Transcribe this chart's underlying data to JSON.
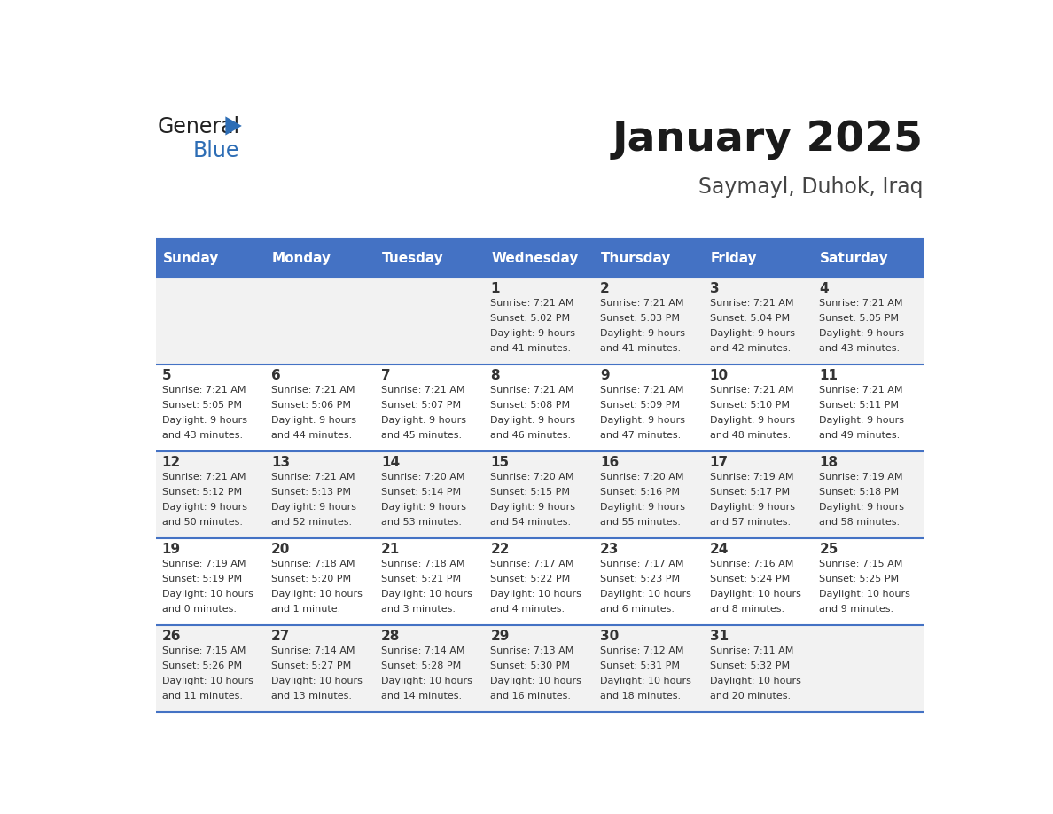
{
  "title": "January 2025",
  "subtitle": "Saymayl, Duhok, Iraq",
  "days_of_week": [
    "Sunday",
    "Monday",
    "Tuesday",
    "Wednesday",
    "Thursday",
    "Friday",
    "Saturday"
  ],
  "header_bg": "#4472C4",
  "header_text": "#FFFFFF",
  "row_bg_odd": "#F2F2F2",
  "row_bg_even": "#FFFFFF",
  "cell_text": "#222222",
  "day_number_color": "#333333",
  "separator_color": "#4472C4",
  "calendar_data": [
    [
      null,
      null,
      null,
      {
        "day": 1,
        "sunrise": "7:21 AM",
        "sunset": "5:02 PM",
        "daylight": "9 hours and 41 minutes."
      },
      {
        "day": 2,
        "sunrise": "7:21 AM",
        "sunset": "5:03 PM",
        "daylight": "9 hours and 41 minutes."
      },
      {
        "day": 3,
        "sunrise": "7:21 AM",
        "sunset": "5:04 PM",
        "daylight": "9 hours and 42 minutes."
      },
      {
        "day": 4,
        "sunrise": "7:21 AM",
        "sunset": "5:05 PM",
        "daylight": "9 hours and 43 minutes."
      }
    ],
    [
      {
        "day": 5,
        "sunrise": "7:21 AM",
        "sunset": "5:05 PM",
        "daylight": "9 hours and 43 minutes."
      },
      {
        "day": 6,
        "sunrise": "7:21 AM",
        "sunset": "5:06 PM",
        "daylight": "9 hours and 44 minutes."
      },
      {
        "day": 7,
        "sunrise": "7:21 AM",
        "sunset": "5:07 PM",
        "daylight": "9 hours and 45 minutes."
      },
      {
        "day": 8,
        "sunrise": "7:21 AM",
        "sunset": "5:08 PM",
        "daylight": "9 hours and 46 minutes."
      },
      {
        "day": 9,
        "sunrise": "7:21 AM",
        "sunset": "5:09 PM",
        "daylight": "9 hours and 47 minutes."
      },
      {
        "day": 10,
        "sunrise": "7:21 AM",
        "sunset": "5:10 PM",
        "daylight": "9 hours and 48 minutes."
      },
      {
        "day": 11,
        "sunrise": "7:21 AM",
        "sunset": "5:11 PM",
        "daylight": "9 hours and 49 minutes."
      }
    ],
    [
      {
        "day": 12,
        "sunrise": "7:21 AM",
        "sunset": "5:12 PM",
        "daylight": "9 hours and 50 minutes."
      },
      {
        "day": 13,
        "sunrise": "7:21 AM",
        "sunset": "5:13 PM",
        "daylight": "9 hours and 52 minutes."
      },
      {
        "day": 14,
        "sunrise": "7:20 AM",
        "sunset": "5:14 PM",
        "daylight": "9 hours and 53 minutes."
      },
      {
        "day": 15,
        "sunrise": "7:20 AM",
        "sunset": "5:15 PM",
        "daylight": "9 hours and 54 minutes."
      },
      {
        "day": 16,
        "sunrise": "7:20 AM",
        "sunset": "5:16 PM",
        "daylight": "9 hours and 55 minutes."
      },
      {
        "day": 17,
        "sunrise": "7:19 AM",
        "sunset": "5:17 PM",
        "daylight": "9 hours and 57 minutes."
      },
      {
        "day": 18,
        "sunrise": "7:19 AM",
        "sunset": "5:18 PM",
        "daylight": "9 hours and 58 minutes."
      }
    ],
    [
      {
        "day": 19,
        "sunrise": "7:19 AM",
        "sunset": "5:19 PM",
        "daylight": "10 hours and 0 minutes."
      },
      {
        "day": 20,
        "sunrise": "7:18 AM",
        "sunset": "5:20 PM",
        "daylight": "10 hours and 1 minute."
      },
      {
        "day": 21,
        "sunrise": "7:18 AM",
        "sunset": "5:21 PM",
        "daylight": "10 hours and 3 minutes."
      },
      {
        "day": 22,
        "sunrise": "7:17 AM",
        "sunset": "5:22 PM",
        "daylight": "10 hours and 4 minutes."
      },
      {
        "day": 23,
        "sunrise": "7:17 AM",
        "sunset": "5:23 PM",
        "daylight": "10 hours and 6 minutes."
      },
      {
        "day": 24,
        "sunrise": "7:16 AM",
        "sunset": "5:24 PM",
        "daylight": "10 hours and 8 minutes."
      },
      {
        "day": 25,
        "sunrise": "7:15 AM",
        "sunset": "5:25 PM",
        "daylight": "10 hours and 9 minutes."
      }
    ],
    [
      {
        "day": 26,
        "sunrise": "7:15 AM",
        "sunset": "5:26 PM",
        "daylight": "10 hours and 11 minutes."
      },
      {
        "day": 27,
        "sunrise": "7:14 AM",
        "sunset": "5:27 PM",
        "daylight": "10 hours and 13 minutes."
      },
      {
        "day": 28,
        "sunrise": "7:14 AM",
        "sunset": "5:28 PM",
        "daylight": "10 hours and 14 minutes."
      },
      {
        "day": 29,
        "sunrise": "7:13 AM",
        "sunset": "5:30 PM",
        "daylight": "10 hours and 16 minutes."
      },
      {
        "day": 30,
        "sunrise": "7:12 AM",
        "sunset": "5:31 PM",
        "daylight": "10 hours and 18 minutes."
      },
      {
        "day": 31,
        "sunrise": "7:11 AM",
        "sunset": "5:32 PM",
        "daylight": "10 hours and 20 minutes."
      },
      null
    ]
  ]
}
